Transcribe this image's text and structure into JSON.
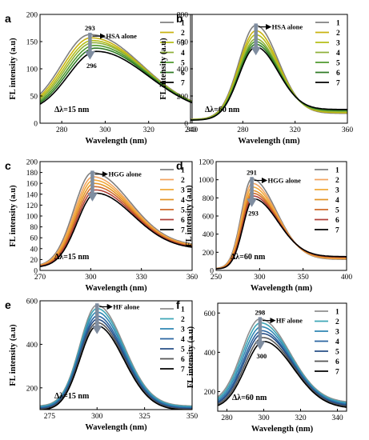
{
  "common": {
    "xlabel": "Wavelength (nm)",
    "ylabel": "FL intensity (a.u)"
  },
  "legend_labels": [
    "1",
    "2",
    "3",
    "4",
    "5",
    "6",
    "7"
  ],
  "chart_data": [
    {
      "panel": "a",
      "type": "line",
      "protein_label": "HSA alone",
      "peak_start": "293",
      "peak_end": "296",
      "delta": "Δλ=15 nm",
      "xlim": [
        270,
        340
      ],
      "ylim": [
        0,
        200
      ],
      "xticks": [
        280,
        300,
        320,
        340
      ],
      "yticks": [
        0,
        50,
        100,
        150,
        200
      ],
      "peak_x": 293,
      "peak_shift": 3,
      "peak_values": [
        163,
        157,
        152,
        148,
        143,
        138,
        132
      ],
      "left_frac": 0.15,
      "right_frac": 0.12,
      "sigma_l": 13,
      "sigma_r": 24,
      "tail_scale": 1.0,
      "colors": [
        "#808080",
        "#c9b310",
        "#b4be18",
        "#8fb03a",
        "#4f9a2e",
        "#2f7a25",
        "#000000"
      ]
    },
    {
      "panel": "b",
      "type": "line",
      "protein_label": "HSA alone",
      "peak_start": "",
      "peak_end": "",
      "delta": "Δλ=60 nm",
      "xlim": [
        240,
        360
      ],
      "ylim": [
        0,
        800
      ],
      "xticks": [
        240,
        280,
        320,
        360
      ],
      "yticks": [
        0,
        200,
        400,
        600,
        800
      ],
      "peak_x": 290,
      "peak_shift": 0,
      "peak_values": [
        720,
        680,
        650,
        620,
        600,
        580,
        560
      ],
      "left_frac": 0.04,
      "right_frac": 0.1,
      "sigma_l": 13,
      "sigma_r": 17,
      "tail_scale": 1.8,
      "colors": [
        "#808080",
        "#c9b310",
        "#b4be18",
        "#8fb03a",
        "#4f9a2e",
        "#2f7a25",
        "#000000"
      ]
    },
    {
      "panel": "c",
      "type": "line",
      "protein_label": "HGG alone",
      "peak_start": "",
      "peak_end": "",
      "delta": "Δλ=15 nm",
      "xlim": [
        270,
        360
      ],
      "ylim": [
        0,
        200
      ],
      "xticks": [
        270,
        300,
        330,
        360
      ],
      "yticks": [
        0,
        20,
        40,
        60,
        80,
        100,
        120,
        140,
        160,
        180,
        200
      ],
      "peak_x": 301,
      "peak_shift": 2,
      "peak_values": [
        180,
        172,
        166,
        160,
        154,
        148,
        142
      ],
      "left_frac": 0.04,
      "right_frac": 0.25,
      "sigma_l": 11,
      "sigma_r": 22,
      "tail_scale": 1.1,
      "colors": [
        "#808080",
        "#f2a561",
        "#f0a93a",
        "#e39428",
        "#cf6a2a",
        "#b04038",
        "#000000"
      ]
    },
    {
      "panel": "d",
      "type": "line",
      "protein_label": "HGG alone",
      "peak_start": "291",
      "peak_end": "293",
      "delta": "Δλ=60 nm",
      "xlim": [
        250,
        400
      ],
      "ylim": [
        0,
        1200
      ],
      "xticks": [
        250,
        300,
        350,
        400
      ],
      "yticks": [
        0,
        200,
        400,
        600,
        800,
        1000,
        1200
      ],
      "peak_x": 291,
      "peak_shift": 2,
      "peak_values": [
        1010,
        960,
        920,
        880,
        850,
        820,
        790
      ],
      "left_frac": 0.02,
      "right_frac": 0.12,
      "sigma_l": 12,
      "sigma_r": 28,
      "tail_scale": 1.6,
      "colors": [
        "#808080",
        "#f2a561",
        "#f0a93a",
        "#e39428",
        "#cf6a2a",
        "#b04038",
        "#000000"
      ]
    },
    {
      "panel": "e",
      "type": "line",
      "protein_label": "HF alone",
      "peak_start": "",
      "peak_end": "",
      "delta": "Δλ=15 nm",
      "xlim": [
        270,
        350
      ],
      "ylim": [
        100,
        600
      ],
      "xticks": [
        275,
        300,
        325,
        350
      ],
      "yticks": [
        200,
        400,
        600
      ],
      "peak_x": 300,
      "peak_shift": 0,
      "peak_values": [
        580,
        565,
        548,
        530,
        515,
        500,
        485
      ],
      "left_frac": 0.2,
      "right_frac": 0.2,
      "sigma_l": 9,
      "sigma_r": 14,
      "tail_scale": 1.0,
      "colors": [
        "#8f8f8f",
        "#3ea6b6",
        "#2f86b2",
        "#2a64a0",
        "#284f86",
        "#555555",
        "#000000"
      ]
    },
    {
      "panel": "f",
      "type": "line",
      "protein_label": "HF alone",
      "peak_start": "298",
      "peak_end": "300",
      "delta": "Δλ=60 nm",
      "xlim": [
        275,
        345
      ],
      "ylim": [
        100,
        650
      ],
      "xticks": [
        280,
        300,
        320,
        340
      ],
      "yticks": [
        200,
        400,
        600
      ],
      "peak_x": 298,
      "peak_shift": 2,
      "peak_values": [
        570,
        550,
        530,
        510,
        495,
        475,
        455
      ],
      "left_frac": 0.25,
      "right_frac": 0.25,
      "sigma_l": 10,
      "sigma_r": 16,
      "tail_scale": 1.0,
      "colors": [
        "#8f8f8f",
        "#3ea6b6",
        "#2f86b2",
        "#2a64a0",
        "#284f86",
        "#555555",
        "#000000"
      ]
    }
  ]
}
